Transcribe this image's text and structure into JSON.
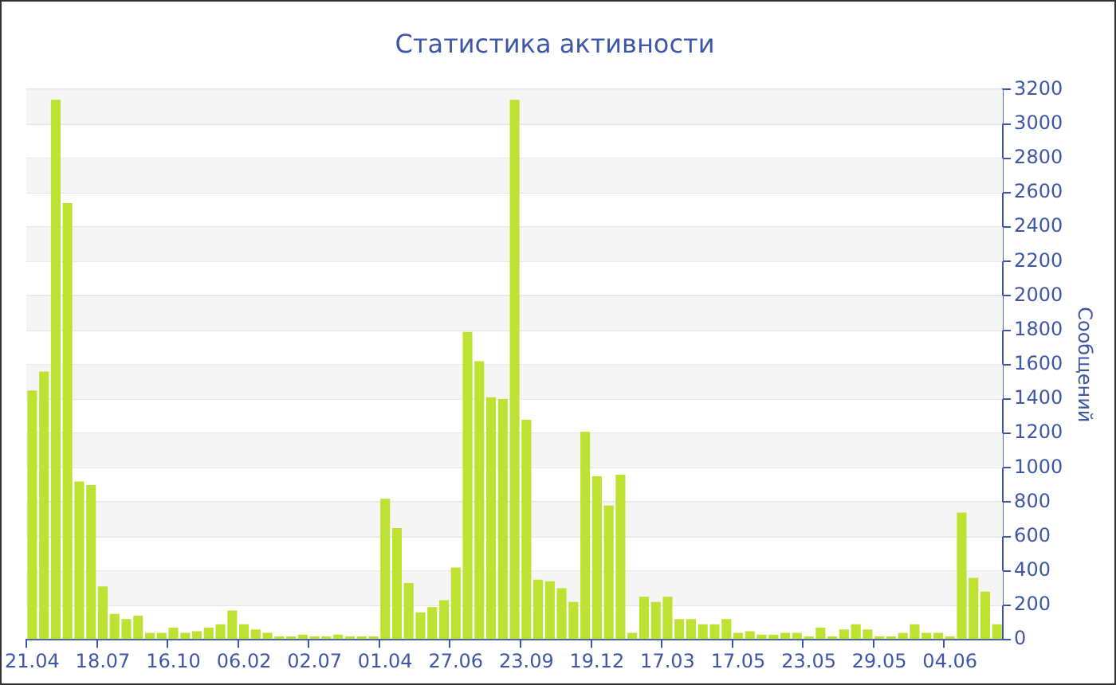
{
  "chart_data": {
    "type": "bar",
    "title": "Статистика активности",
    "ylabel": "Сообщений",
    "categories": [
      "21.04",
      null,
      null,
      null,
      null,
      null,
      "18.07",
      null,
      null,
      null,
      null,
      null,
      "16.10",
      null,
      null,
      null,
      null,
      null,
      "06.02",
      null,
      null,
      null,
      null,
      null,
      "02.07",
      null,
      null,
      null,
      null,
      null,
      "01.04",
      null,
      null,
      null,
      null,
      null,
      "27.06",
      null,
      null,
      null,
      null,
      null,
      "23.09",
      null,
      null,
      null,
      null,
      null,
      "19.12",
      null,
      null,
      null,
      null,
      null,
      "17.03",
      null,
      null,
      null,
      null,
      null,
      "17.05",
      null,
      null,
      null,
      null,
      null,
      "23.05",
      null,
      null,
      null,
      null,
      null,
      "29.05",
      null,
      null,
      null,
      null,
      null,
      "04.06",
      null,
      null,
      null,
      null
    ],
    "values": [
      1450,
      1560,
      3140,
      2540,
      920,
      900,
      310,
      150,
      120,
      140,
      40,
      40,
      70,
      40,
      50,
      70,
      90,
      170,
      90,
      60,
      40,
      20,
      20,
      30,
      20,
      20,
      30,
      20,
      20,
      20,
      820,
      650,
      330,
      160,
      190,
      230,
      420,
      1790,
      1620,
      1410,
      1400,
      3140,
      1280,
      350,
      340,
      300,
      220,
      1210,
      950,
      780,
      960,
      40,
      250,
      220,
      250,
      120,
      120,
      90,
      90,
      120,
      40,
      50,
      30,
      30,
      40,
      40,
      20,
      70,
      20,
      60,
      90,
      60,
      20,
      20,
      40,
      90,
      40,
      40,
      20,
      740,
      360,
      280,
      90
    ],
    "color": "#bde232",
    "ylim": [
      0,
      3200
    ],
    "yticks": [
      0,
      200,
      400,
      600,
      800,
      1000,
      1200,
      1400,
      1600,
      1800,
      2000,
      2200,
      2400,
      2600,
      2800,
      3000,
      3200
    ],
    "grid": "y",
    "legend": false
  }
}
